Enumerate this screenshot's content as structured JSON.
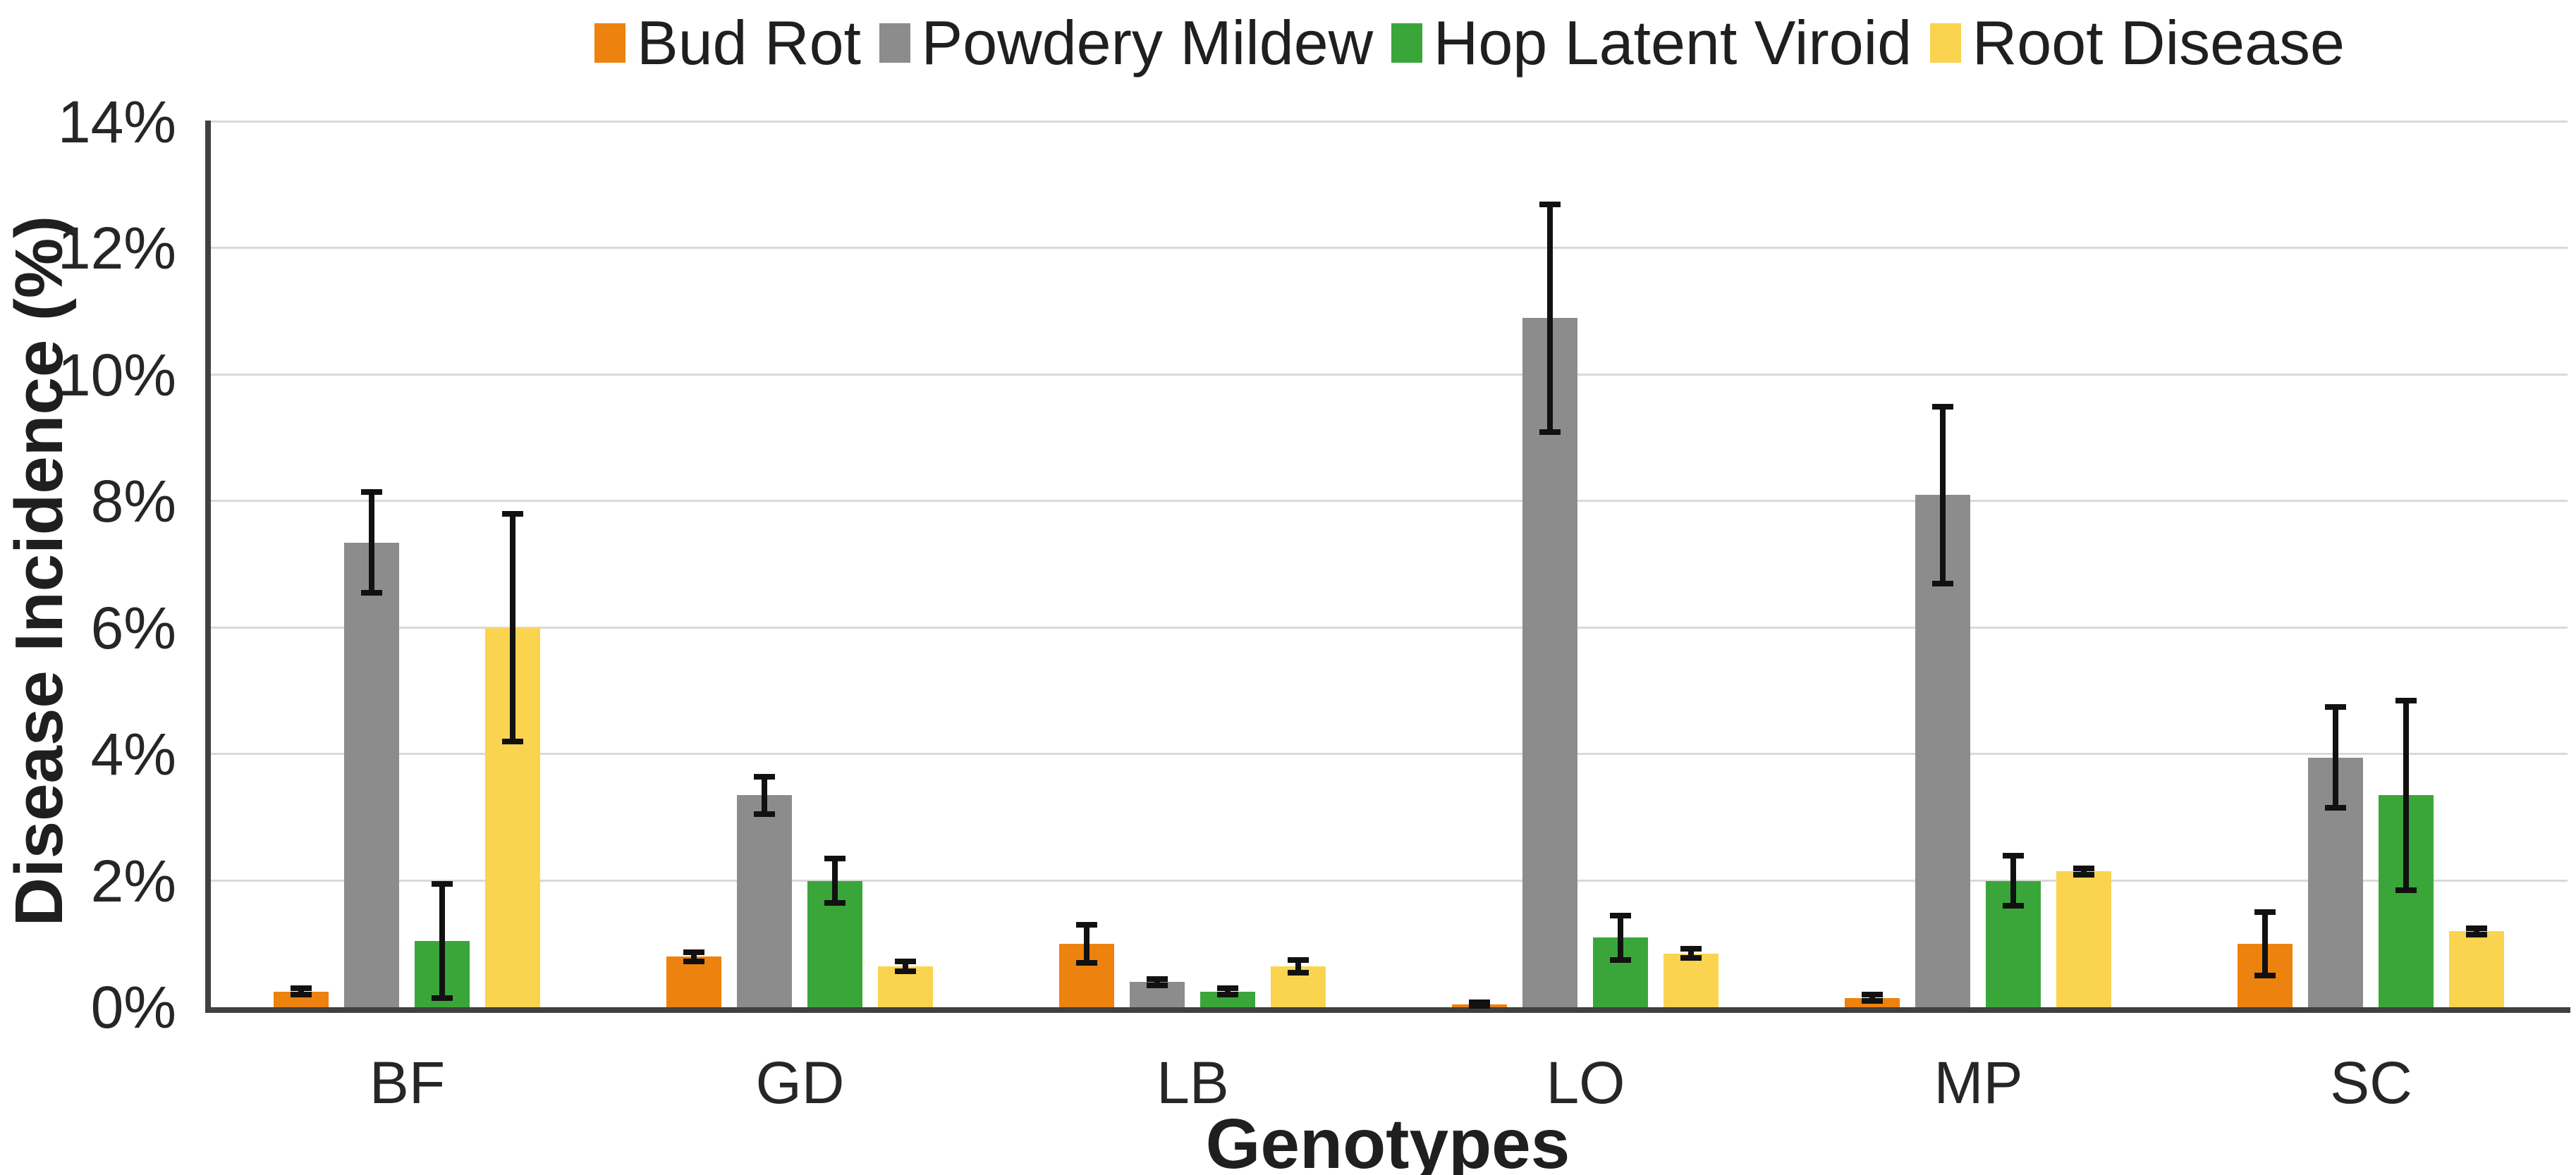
{
  "chart_data": {
    "type": "bar",
    "title": "",
    "xlabel": "Genotypes",
    "ylabel": "Disease Incidence (%)",
    "ylim": [
      0,
      14
    ],
    "y_tick_step": 2,
    "y_ticks": [
      "0%",
      "2%",
      "4%",
      "6%",
      "8%",
      "10%",
      "12%",
      "14%"
    ],
    "grid": true,
    "legend_position": "top",
    "categories": [
      "BF",
      "GD",
      "LB",
      "LO",
      "MP",
      "SC"
    ],
    "series": [
      {
        "name": "Bud Rot",
        "color": "#ED820E",
        "values": [
          0.25,
          0.8,
          1.0,
          0.05,
          0.15,
          1.0
        ],
        "errors": [
          0.05,
          0.07,
          0.3,
          0.03,
          0.05,
          0.5
        ]
      },
      {
        "name": "Powdery Mildew",
        "color": "#8C8C8C",
        "values": [
          7.35,
          3.35,
          0.4,
          10.9,
          8.1,
          3.95
        ],
        "errors": [
          0.8,
          0.3,
          0.05,
          1.8,
          1.4,
          0.8
        ]
      },
      {
        "name": "Hop Latent Viroid",
        "color": "#3AA63A",
        "values": [
          1.05,
          2.0,
          0.25,
          1.1,
          2.0,
          3.35
        ],
        "errors": [
          0.9,
          0.35,
          0.05,
          0.35,
          0.4,
          1.5
        ]
      },
      {
        "name": "Root Disease",
        "color": "#FBD44F",
        "values": [
          6.0,
          0.65,
          0.65,
          0.85,
          2.15,
          1.2
        ],
        "errors": [
          1.8,
          0.08,
          0.1,
          0.07,
          0.05,
          0.05
        ]
      }
    ],
    "error_bar_color": "#111111",
    "gridline_color": "#D9D9D9",
    "axis_line_color": "#404040",
    "text_color": "#262626"
  }
}
